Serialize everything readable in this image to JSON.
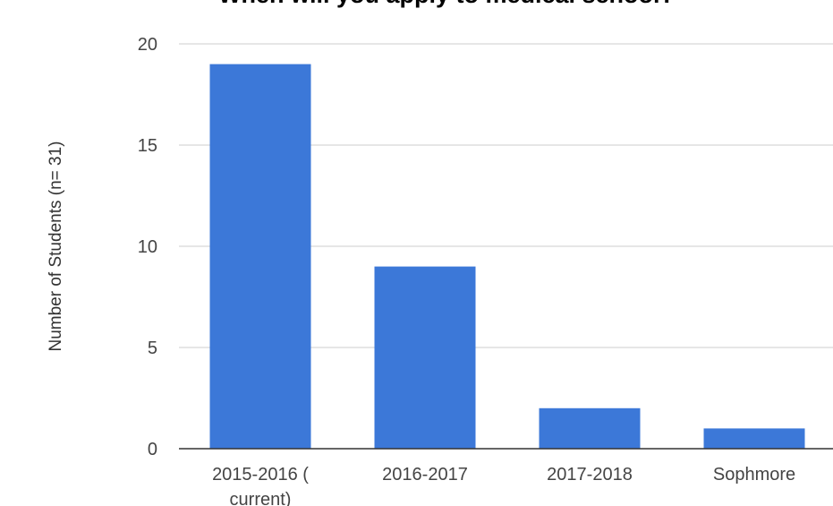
{
  "chart_data": {
    "type": "bar",
    "title": "When will you apply to medical school?",
    "ylabel": "Number of Students (n= 31)",
    "xlabel": "",
    "categories": [
      [
        "2015-2016 (",
        "current)"
      ],
      [
        "2016-2017"
      ],
      [
        "2017-2018"
      ],
      [
        "Sophmore"
      ]
    ],
    "values": [
      19,
      9,
      2,
      1
    ],
    "ylim": [
      0,
      20
    ],
    "yticks": [
      0,
      5,
      10,
      15,
      20
    ],
    "grid": true,
    "legend": "none",
    "bar_color": "#3c78d8"
  }
}
